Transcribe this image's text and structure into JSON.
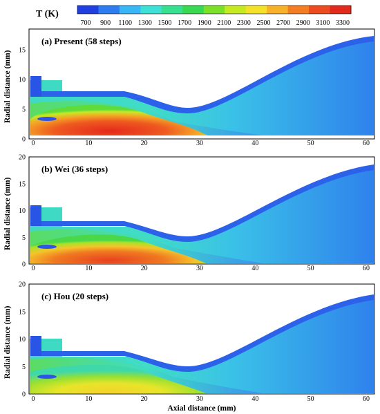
{
  "colorbar": {
    "title": "T (K)",
    "ticks": [
      "700",
      "900",
      "1100",
      "1300",
      "1500",
      "1700",
      "1900",
      "2100",
      "2300",
      "2500",
      "2700",
      "2900",
      "3100",
      "3300"
    ],
    "colors": [
      "#1f3fe0",
      "#2d7cf0",
      "#37b7f5",
      "#3de0d4",
      "#36e08f",
      "#38d850",
      "#7be028",
      "#c6ea22",
      "#f4e12a",
      "#f8b22a",
      "#f47d24",
      "#ec4a1f",
      "#e02a1c"
    ]
  },
  "panels": [
    {
      "label": "(a) Present (58 steps)",
      "ylabel": "Radial distance (mm)",
      "yticks": [
        "0",
        "5",
        "10",
        "15"
      ],
      "xticks": [
        "0",
        "10",
        "20",
        "30",
        "40",
        "50",
        "60"
      ]
    },
    {
      "label": "(b) Wei (36 steps)",
      "ylabel": "Radial distance (mm)",
      "yticks": [
        "0",
        "5",
        "10",
        "15",
        "20"
      ],
      "xticks": [
        "0",
        "10",
        "20",
        "30",
        "40",
        "50",
        "60"
      ]
    },
    {
      "label": "(c) Hou (20 steps)",
      "ylabel": "Radial distance (mm)",
      "yticks": [
        "0",
        "5",
        "10",
        "15",
        "20"
      ],
      "xticks": [
        "0",
        "10",
        "20",
        "30",
        "40",
        "50",
        "60"
      ]
    }
  ],
  "xlabel": "Axial distance (mm)"
}
